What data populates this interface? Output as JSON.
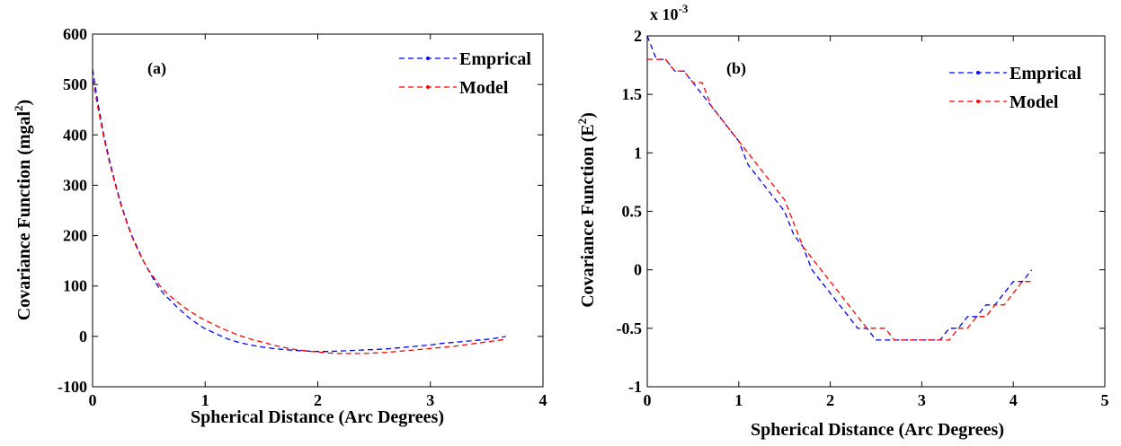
{
  "chart_data": [
    {
      "type": "line",
      "panel_label": "(a)",
      "xlabel": "Spherical Distance (Arc Degrees)",
      "ylabel": "Covariance Function (mgal",
      "ylabel_sup": "2",
      "ylabel_close": ")",
      "xlim": [
        0,
        4
      ],
      "ylim": [
        -100,
        600
      ],
      "xticks": [
        0,
        1,
        2,
        3,
        4
      ],
      "yticks": [
        -100,
        0,
        100,
        200,
        300,
        400,
        500,
        600
      ],
      "xtick_labels": [
        "0",
        "1",
        "2",
        "3",
        "4"
      ],
      "ytick_labels": [
        "-100",
        "0",
        "100",
        "200",
        "300",
        "400",
        "500",
        "600"
      ],
      "legend_position": "top-right",
      "series": [
        {
          "name": "Emprical",
          "color": "#0000ff",
          "x": [
            0,
            0.05,
            0.1,
            0.15,
            0.2,
            0.25,
            0.3,
            0.35,
            0.4,
            0.45,
            0.5,
            0.55,
            0.6,
            0.65,
            0.7,
            0.75,
            0.8,
            0.85,
            0.9,
            0.95,
            1.0,
            1.1,
            1.2,
            1.3,
            1.4,
            1.5,
            1.6,
            1.7,
            1.8,
            1.9,
            2.0,
            2.1,
            2.2,
            2.3,
            2.4,
            2.5,
            2.6,
            2.7,
            2.8,
            2.9,
            3.0,
            3.1,
            3.2,
            3.3,
            3.4,
            3.5,
            3.6,
            3.67
          ],
          "y": [
            530,
            460,
            400,
            350,
            305,
            265,
            230,
            200,
            175,
            150,
            130,
            110,
            93,
            80,
            70,
            58,
            48,
            38,
            30,
            22,
            15,
            5,
            -5,
            -12,
            -17,
            -21,
            -24,
            -26,
            -28,
            -29,
            -30,
            -30,
            -29,
            -28,
            -27,
            -26,
            -25,
            -23,
            -21,
            -19,
            -17,
            -14,
            -12,
            -10,
            -8,
            -6,
            -3,
            0
          ]
        },
        {
          "name": "Model",
          "color": "#ff0000",
          "x": [
            0,
            0.05,
            0.1,
            0.15,
            0.2,
            0.25,
            0.3,
            0.35,
            0.4,
            0.45,
            0.5,
            0.55,
            0.6,
            0.65,
            0.7,
            0.75,
            0.8,
            0.85,
            0.9,
            0.95,
            1.0,
            1.1,
            1.2,
            1.3,
            1.4,
            1.5,
            1.6,
            1.7,
            1.8,
            1.9,
            2.0,
            2.1,
            2.2,
            2.3,
            2.4,
            2.5,
            2.6,
            2.7,
            2.8,
            2.9,
            3.0,
            3.1,
            3.2,
            3.3,
            3.4,
            3.5,
            3.6,
            3.67
          ],
          "y": [
            510,
            450,
            395,
            345,
            302,
            262,
            228,
            198,
            172,
            150,
            131,
            115,
            100,
            88,
            78,
            69,
            60,
            52,
            45,
            38,
            32,
            21,
            11,
            2,
            -5,
            -11,
            -17,
            -22,
            -26,
            -29,
            -31,
            -33,
            -34,
            -34,
            -34,
            -33,
            -32,
            -30,
            -28,
            -26,
            -24,
            -22,
            -20,
            -17,
            -14,
            -11,
            -8,
            -6
          ]
        }
      ]
    },
    {
      "type": "line",
      "panel_label": "(b)",
      "xlabel": "Spherical Distance (Arc Degrees)",
      "ylabel": "Covariance Function (E",
      "ylabel_sup": "2",
      "ylabel_close": ")",
      "y_scale_text": "x 10",
      "y_scale_sup": "-3",
      "xlim": [
        0,
        5
      ],
      "ylim": [
        -1,
        2
      ],
      "xticks": [
        0,
        1,
        2,
        3,
        4,
        5
      ],
      "yticks": [
        -1,
        -0.5,
        0,
        0.5,
        1,
        1.5,
        2
      ],
      "xtick_labels": [
        "0",
        "1",
        "2",
        "3",
        "4",
        "5"
      ],
      "ytick_labels": [
        "-1",
        "-0.5",
        "0",
        "0.5",
        "1",
        "1.5",
        "2"
      ],
      "legend_position": "top-right",
      "series": [
        {
          "name": "Emprical",
          "color": "#0000ff",
          "x": [
            0,
            0.1,
            0.2,
            0.3,
            0.4,
            0.5,
            0.6,
            0.7,
            0.8,
            0.9,
            1.0,
            1.1,
            1.2,
            1.3,
            1.4,
            1.5,
            1.6,
            1.7,
            1.8,
            1.9,
            2.0,
            2.1,
            2.2,
            2.3,
            2.4,
            2.5,
            2.6,
            2.7,
            2.8,
            2.9,
            3.0,
            3.1,
            3.2,
            3.3,
            3.4,
            3.5,
            3.6,
            3.7,
            3.8,
            3.9,
            4.0,
            4.1,
            4.2
          ],
          "y": [
            2.0,
            1.8,
            1.8,
            1.7,
            1.7,
            1.6,
            1.5,
            1.4,
            1.3,
            1.2,
            1.1,
            0.9,
            0.8,
            0.7,
            0.6,
            0.5,
            0.3,
            0.2,
            0.0,
            -0.1,
            -0.2,
            -0.3,
            -0.4,
            -0.5,
            -0.5,
            -0.6,
            -0.6,
            -0.6,
            -0.6,
            -0.6,
            -0.6,
            -0.6,
            -0.6,
            -0.5,
            -0.5,
            -0.4,
            -0.4,
            -0.3,
            -0.3,
            -0.2,
            -0.1,
            -0.1,
            0.0
          ]
        },
        {
          "name": "Model",
          "color": "#ff0000",
          "x": [
            0,
            0.1,
            0.2,
            0.3,
            0.4,
            0.5,
            0.6,
            0.7,
            0.8,
            0.9,
            1.0,
            1.1,
            1.2,
            1.3,
            1.4,
            1.5,
            1.6,
            1.7,
            1.8,
            1.9,
            2.0,
            2.1,
            2.2,
            2.3,
            2.4,
            2.5,
            2.6,
            2.7,
            2.8,
            2.9,
            3.0,
            3.1,
            3.2,
            3.3,
            3.4,
            3.5,
            3.6,
            3.7,
            3.8,
            3.9,
            4.0,
            4.1,
            4.2
          ],
          "y": [
            1.8,
            1.8,
            1.8,
            1.7,
            1.7,
            1.6,
            1.6,
            1.4,
            1.3,
            1.2,
            1.1,
            1.0,
            0.9,
            0.8,
            0.7,
            0.6,
            0.4,
            0.2,
            0.1,
            0.0,
            -0.1,
            -0.2,
            -0.3,
            -0.4,
            -0.5,
            -0.5,
            -0.5,
            -0.6,
            -0.6,
            -0.6,
            -0.6,
            -0.6,
            -0.6,
            -0.6,
            -0.5,
            -0.5,
            -0.4,
            -0.4,
            -0.3,
            -0.3,
            -0.2,
            -0.1,
            -0.1
          ]
        }
      ]
    }
  ]
}
